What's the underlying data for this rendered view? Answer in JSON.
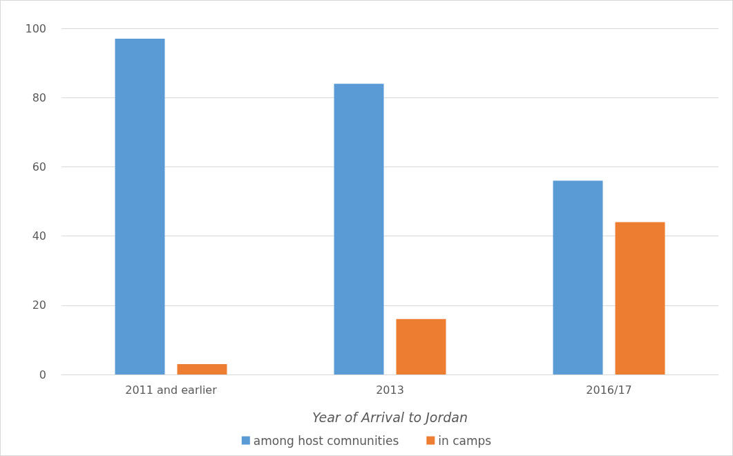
{
  "chart_data": {
    "type": "bar",
    "xlabel": "Year of Arrival to Jordan",
    "categories": [
      "2011 and earlier",
      "2013",
      "2016/17"
    ],
    "series": [
      {
        "name": "among host comnunities",
        "color": "#5b9bd5",
        "values": [
          97,
          84,
          56
        ]
      },
      {
        "name": "in camps",
        "color": "#ed7d31",
        "values": [
          3,
          16,
          44
        ]
      }
    ],
    "ylim": [
      0,
      100
    ],
    "yticks": [
      0,
      20,
      40,
      60,
      80,
      100
    ],
    "grid": "y",
    "legend": "bottom"
  }
}
